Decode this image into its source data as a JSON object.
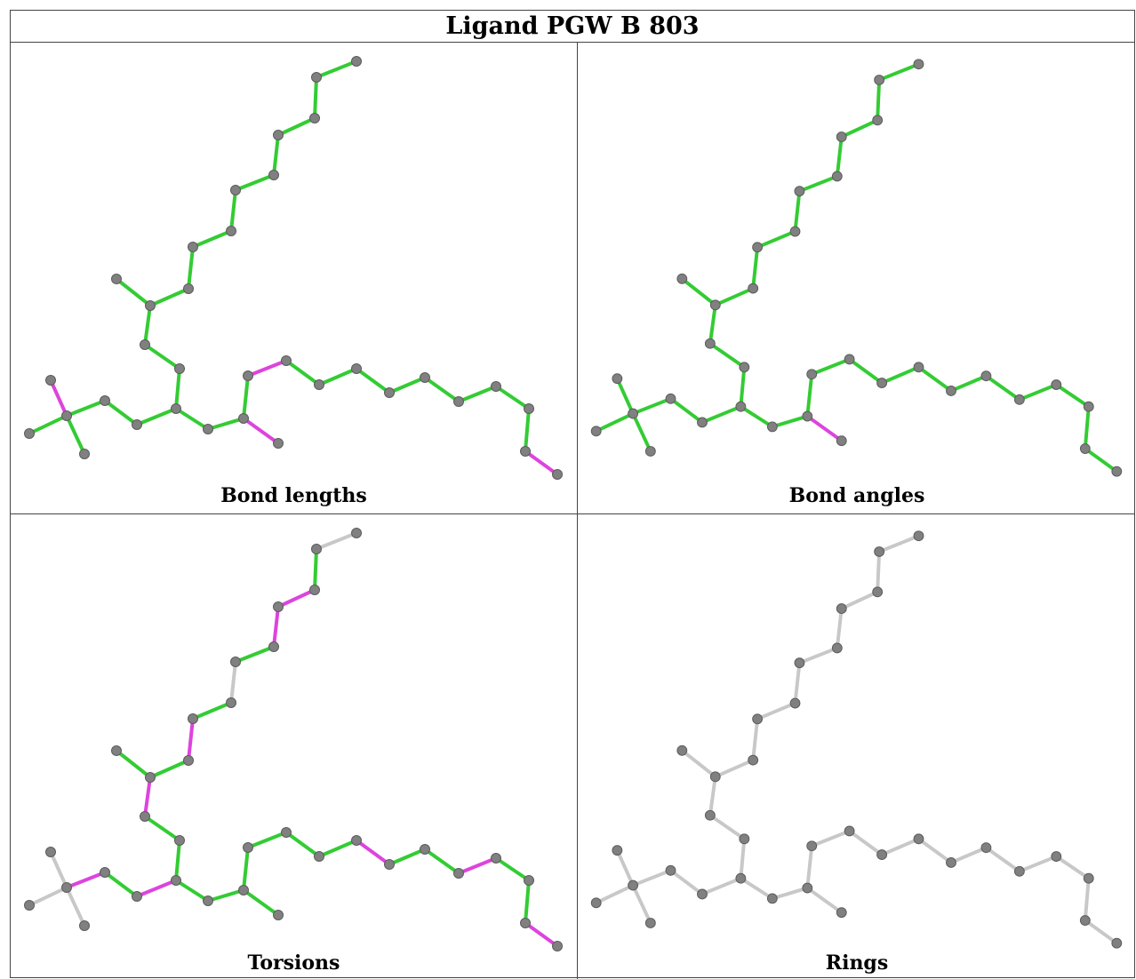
{
  "title": "Ligand PGW B 803",
  "colors": {
    "ok": "#33cc33",
    "outlier": "#dd44dd",
    "neutral": "#c8c8c8",
    "atom": "#808080"
  },
  "panels": [
    {
      "caption": "Bond lengths",
      "outliers": [
        [
          0,
          1
        ],
        [
          21,
          22
        ],
        [
          23,
          24
        ],
        [
          32,
          33
        ]
      ],
      "default": "ok"
    },
    {
      "caption": "Bond angles",
      "outliers": [
        [
          19,
          20
        ],
        [
          33,
          34
        ],
        [
          21,
          22
        ]
      ],
      "default": "ok"
    },
    {
      "caption": "Torsions",
      "outliers": [
        [
          0,
          4
        ],
        [
          26,
          27
        ],
        [
          29,
          30
        ],
        [
          32,
          33
        ],
        [
          16,
          17
        ],
        [
          15,
          16
        ],
        [
          11,
          12
        ],
        [
          8,
          9
        ],
        [
          5,
          6
        ]
      ],
      "grey": [
        [
          0,
          1
        ],
        [
          0,
          2
        ],
        [
          0,
          3
        ],
        [
          18,
          19
        ],
        [
          13,
          14
        ],
        [
          38,
          39
        ]
      ],
      "default": "ok"
    },
    {
      "caption": "Rings",
      "outliers": [],
      "default": "neutral"
    }
  ]
}
